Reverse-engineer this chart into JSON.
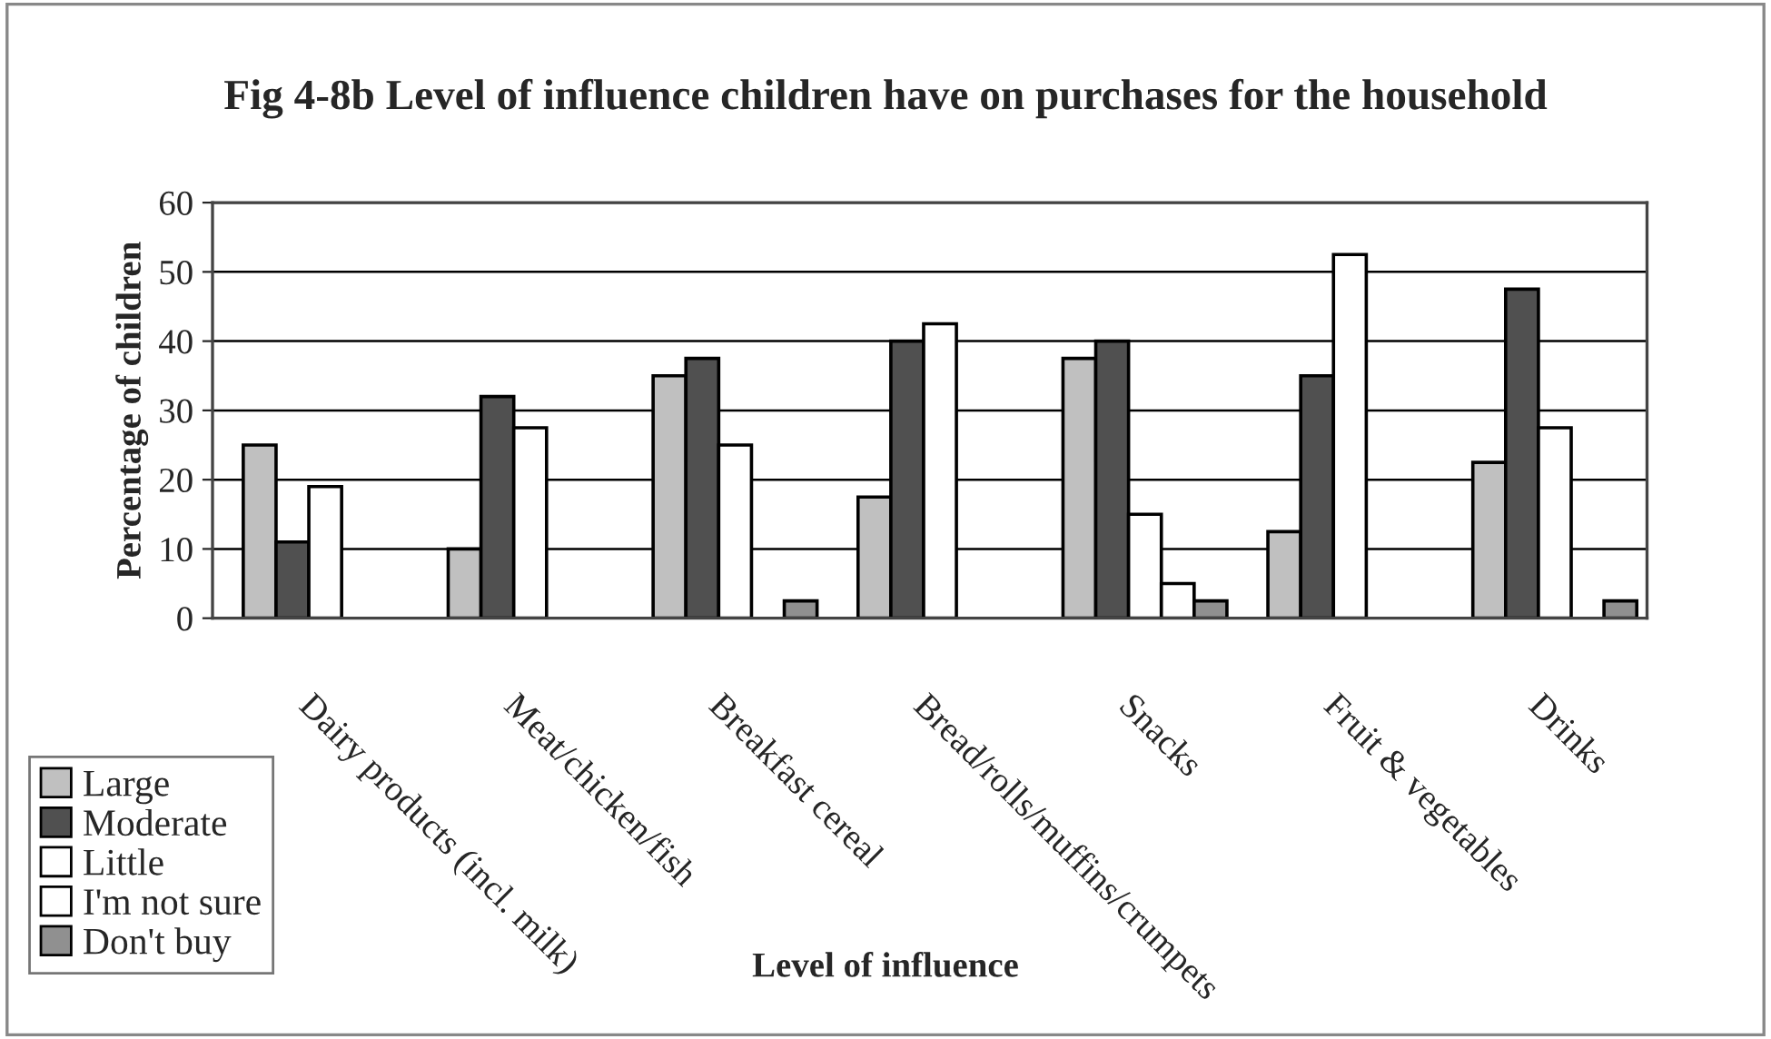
{
  "chart_data": {
    "type": "bar",
    "title": "Fig 4-8b Level of influence children have on purchases for the household",
    "xlabel": "Level of influence",
    "ylabel": "Percentage of children",
    "categories": [
      "Dairy products (incl. milk)",
      "Meat/chicken/fish",
      "Breakfast cereal",
      "Bread/rolls/muffins/crumpets",
      "Snacks",
      "Fruit & vegetables",
      "Drinks"
    ],
    "series": [
      {
        "name": "Large",
        "color": "#c0c0c0",
        "values": [
          25,
          10,
          35,
          17.5,
          37.5,
          12.5,
          22.5
        ]
      },
      {
        "name": "Moderate",
        "color": "#505050",
        "values": [
          11,
          32,
          37.5,
          40,
          40,
          35,
          47.5
        ]
      },
      {
        "name": "Little",
        "color": "#ffffff",
        "values": [
          19,
          27.5,
          25,
          42.5,
          15,
          52.5,
          27.5
        ]
      },
      {
        "name": "I'm not sure",
        "color": "#ffffff",
        "values": [
          null,
          null,
          null,
          null,
          5,
          null,
          null
        ]
      },
      {
        "name": "Don't buy",
        "color": "#909090",
        "values": [
          null,
          null,
          2.5,
          null,
          2.5,
          null,
          2.5
        ]
      }
    ],
    "ylim": [
      0,
      60
    ],
    "yticks": [
      0,
      10,
      20,
      30,
      40,
      50,
      60
    ],
    "grid": "y",
    "legend": "bottom left"
  }
}
